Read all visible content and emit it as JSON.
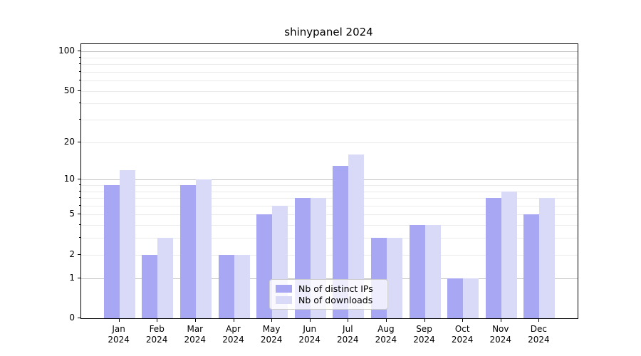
{
  "chart_data": {
    "type": "bar",
    "title": "shinypanel 2024",
    "categories": [
      "Jan",
      "Feb",
      "Mar",
      "Apr",
      "May",
      "Jun",
      "Jul",
      "Aug",
      "Sep",
      "Oct",
      "Nov",
      "Dec"
    ],
    "x_year": "2024",
    "series": [
      {
        "name": "Nb of distinct IPs",
        "color": "#a7a7f3",
        "values": [
          9,
          2,
          9,
          2,
          5,
          7,
          13,
          3,
          4,
          1,
          7,
          5
        ]
      },
      {
        "name": "Nb of downloads",
        "color": "#d9d9f8",
        "values": [
          12,
          3,
          10,
          2,
          6,
          7,
          16,
          3,
          4,
          1,
          8,
          7
        ]
      }
    ],
    "y_ticks": [
      100,
      50,
      20,
      10,
      5,
      2,
      1,
      0
    ],
    "scale": "log(1+y)",
    "ylim": [
      0,
      112
    ],
    "grid": "major at 1,10,100 (gray); minor at 2-9, 20-90 (faint)",
    "legend_position": "lower center"
  },
  "colors": {
    "bar_distinct_ips": "#a7a7f3",
    "bar_downloads": "#d9d9f8",
    "grid_major": "#c2c2c2",
    "grid_minor": "#ebebeb",
    "spine": "#000000",
    "text": "#000000"
  }
}
